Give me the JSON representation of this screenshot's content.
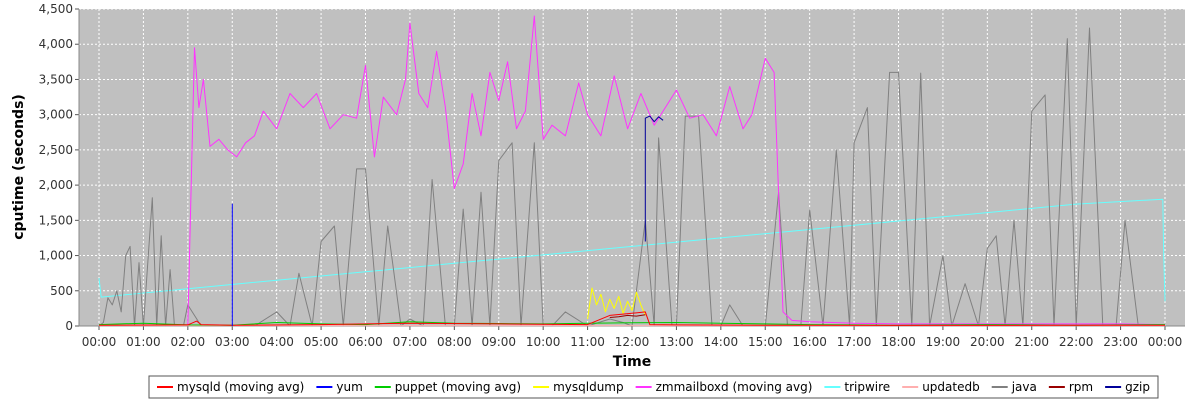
{
  "chart_data": {
    "type": "line",
    "title": "",
    "xlabel": "Time",
    "ylabel": "cputime (seconds)",
    "xlim": [
      0,
      24
    ],
    "ylim": [
      0,
      4500
    ],
    "yticks": [
      0,
      500,
      1000,
      1500,
      2000,
      2500,
      3000,
      3500,
      4000,
      4500
    ],
    "ytick_labels": [
      "0",
      "500",
      "1,000",
      "1,500",
      "2,000",
      "2,500",
      "3,000",
      "3,500",
      "4,000",
      "4,500"
    ],
    "xticks": [
      0,
      1,
      2,
      3,
      4,
      5,
      6,
      7,
      8,
      9,
      10,
      11,
      12,
      13,
      14,
      15,
      16,
      17,
      18,
      19,
      20,
      21,
      22,
      23,
      24
    ],
    "xtick_labels": [
      "00:00",
      "01:00",
      "02:00",
      "03:00",
      "04:00",
      "05:00",
      "06:00",
      "07:00",
      "08:00",
      "09:00",
      "10:00",
      "11:00",
      "12:00",
      "13:00",
      "14:00",
      "15:00",
      "16:00",
      "17:00",
      "18:00",
      "19:00",
      "20:00",
      "21:00",
      "22:00",
      "23:00",
      "00:00"
    ],
    "grid": true,
    "plot_background": "#c0c0c0",
    "grid_color": "#ffffff",
    "legend_position": "bottom",
    "series": [
      {
        "name": "mysqld (moving avg)",
        "color": "#ff0000",
        "x": [
          0.0,
          2.0,
          2.2,
          2.3,
          3.0,
          5.0,
          7.0,
          9.0,
          11.0,
          11.5,
          12.0,
          12.3,
          12.4,
          13.0,
          15.0,
          16.0,
          18.0,
          20.0,
          22.0,
          24.0
        ],
        "y": [
          10,
          15,
          70,
          20,
          10,
          20,
          40,
          30,
          20,
          150,
          180,
          200,
          20,
          15,
          10,
          10,
          8,
          8,
          10,
          10
        ]
      },
      {
        "name": "yum",
        "color": "#0000ff",
        "x": [
          3.0,
          3.0,
          3.0
        ],
        "y": [
          0,
          1730,
          0
        ]
      },
      {
        "name": "puppet (moving avg)",
        "color": "#00cc00",
        "x": [
          0.0,
          1.0,
          2.0,
          3.0,
          4.0,
          5.0,
          6.0,
          7.0,
          8.0,
          9.0,
          10.0,
          11.0,
          12.0,
          13.0,
          14.0,
          15.0,
          16.0,
          17.0,
          18.0,
          19.0,
          20.0,
          21.0,
          22.0,
          23.0,
          24.0
        ],
        "y": [
          20,
          40,
          15,
          10,
          50,
          30,
          20,
          60,
          40,
          35,
          30,
          40,
          45,
          50,
          40,
          30,
          20,
          15,
          10,
          15,
          20,
          15,
          10,
          15,
          20
        ]
      },
      {
        "name": "mysqldump",
        "color": "#ffff00",
        "x": [
          11.0,
          11.1,
          11.2,
          11.3,
          11.4,
          11.5,
          11.6,
          11.7,
          11.8,
          11.9,
          12.0,
          12.1,
          12.2,
          12.3
        ],
        "y": [
          100,
          540,
          300,
          450,
          200,
          380,
          250,
          420,
          180,
          350,
          220,
          480,
          300,
          150
        ]
      },
      {
        "name": "zmmailboxd (moving avg)",
        "color": "#ff33ff",
        "x": [
          2.0,
          2.15,
          2.25,
          2.35,
          2.5,
          2.7,
          2.9,
          3.1,
          3.3,
          3.5,
          3.7,
          4.0,
          4.3,
          4.6,
          4.9,
          5.2,
          5.5,
          5.8,
          6.0,
          6.2,
          6.4,
          6.7,
          6.9,
          7.0,
          7.2,
          7.4,
          7.6,
          7.8,
          8.0,
          8.2,
          8.4,
          8.6,
          8.8,
          9.0,
          9.2,
          9.4,
          9.6,
          9.8,
          10.0,
          10.2,
          10.5,
          10.8,
          11.0,
          11.3,
          11.6,
          11.9,
          12.2,
          12.5,
          12.8,
          13.0,
          13.3,
          13.6,
          13.9,
          14.2,
          14.5,
          14.7,
          15.0,
          15.2,
          15.4,
          15.6,
          16.0,
          17.0,
          18.0,
          19.0,
          20.0,
          21.0,
          22.0,
          23.0,
          24.0
        ],
        "y": [
          0,
          3950,
          3100,
          3500,
          2550,
          2650,
          2500,
          2400,
          2600,
          2700,
          3050,
          2800,
          3300,
          3100,
          3300,
          2800,
          3000,
          2950,
          3700,
          2400,
          3250,
          3000,
          3500,
          4300,
          3300,
          3100,
          3900,
          3100,
          1950,
          2300,
          3300,
          2700,
          3600,
          3200,
          3750,
          2800,
          3050,
          4400,
          2650,
          2850,
          2700,
          3450,
          3000,
          2700,
          3550,
          2800,
          3300,
          2850,
          3150,
          3350,
          2950,
          3000,
          2700,
          3400,
          2800,
          3000,
          3800,
          3600,
          200,
          80,
          60,
          40,
          30,
          30,
          30,
          30,
          30,
          30,
          20
        ]
      },
      {
        "name": "tripwire",
        "color": "#66ffff",
        "x": [
          0.0,
          0.05,
          2.0,
          4.0,
          6.0,
          8.0,
          10.0,
          12.0,
          14.0,
          16.0,
          18.0,
          20.0,
          22.0,
          23.95,
          23.97,
          24.0
        ],
        "y": [
          680,
          410,
          530,
          650,
          770,
          890,
          1010,
          1130,
          1250,
          1370,
          1490,
          1610,
          1730,
          1800,
          1000,
          350
        ]
      },
      {
        "name": "updatedb",
        "color": "#ffafaf",
        "x": [
          0.0,
          3.0,
          6.0,
          9.0,
          12.0,
          15.0,
          18.0,
          21.0,
          24.0
        ],
        "y": [
          5,
          5,
          5,
          5,
          5,
          5,
          5,
          5,
          5
        ]
      },
      {
        "name": "java",
        "color": "#808080",
        "x": [
          0.0,
          0.1,
          0.2,
          0.3,
          0.4,
          0.5,
          0.6,
          0.7,
          0.8,
          0.9,
          1.0,
          1.2,
          1.3,
          1.4,
          1.5,
          1.6,
          1.7,
          1.8,
          1.9,
          2.0,
          2.3,
          3.0,
          3.5,
          4.0,
          4.3,
          4.5,
          4.8,
          5.0,
          5.3,
          5.5,
          5.8,
          6.0,
          6.3,
          6.5,
          6.8,
          7.0,
          7.3,
          7.5,
          7.8,
          8.0,
          8.2,
          8.4,
          8.6,
          8.8,
          9.0,
          9.3,
          9.5,
          9.8,
          10.0,
          10.2,
          10.5,
          11.0,
          11.5,
          11.8,
          12.0,
          12.3,
          12.5,
          12.6,
          12.9,
          13.0,
          13.2,
          13.5,
          13.8,
          14.0,
          14.2,
          14.5,
          14.8,
          15.0,
          15.3,
          15.5,
          15.8,
          16.0,
          16.3,
          16.6,
          16.9,
          17.0,
          17.3,
          17.5,
          17.8,
          18.0,
          18.3,
          18.5,
          18.7,
          19.0,
          19.2,
          19.5,
          19.8,
          20.0,
          20.2,
          20.4,
          20.6,
          20.8,
          21.0,
          21.3,
          21.5,
          21.8,
          22.0,
          22.3,
          22.6,
          22.9,
          23.1,
          23.4,
          23.7,
          24.0
        ],
        "y": [
          0,
          50,
          400,
          300,
          500,
          200,
          1000,
          1130,
          0,
          900,
          0,
          1820,
          0,
          1280,
          0,
          800,
          0,
          0,
          0,
          300,
          0,
          0,
          0,
          200,
          0,
          750,
          0,
          1200,
          1420,
          0,
          2230,
          2230,
          0,
          1420,
          0,
          100,
          0,
          2080,
          0,
          0,
          1660,
          0,
          1900,
          0,
          2350,
          2600,
          0,
          2600,
          0,
          0,
          200,
          0,
          100,
          50,
          0,
          1500,
          0,
          2670,
          0,
          0,
          2980,
          2980,
          0,
          0,
          300,
          0,
          0,
          0,
          1900,
          0,
          0,
          1650,
          0,
          2500,
          0,
          2600,
          3100,
          0,
          3600,
          3600,
          0,
          3590,
          0,
          1000,
          0,
          600,
          0,
          1100,
          1280,
          0,
          1500,
          0,
          3050,
          3280,
          0,
          4080,
          0,
          4230,
          0,
          0,
          1500,
          0,
          0,
          0
        ]
      },
      {
        "name": "rpm",
        "color": "#990000",
        "x": [
          11.5,
          11.7,
          11.9,
          12.1,
          12.3
        ],
        "y": [
          120,
          130,
          150,
          140,
          160
        ]
      },
      {
        "name": "gzip",
        "color": "#000099",
        "x": [
          12.3,
          12.3,
          12.4,
          12.5,
          12.6,
          12.7
        ],
        "y": [
          1200,
          2950,
          2980,
          2900,
          2970,
          2920
        ]
      }
    ]
  }
}
